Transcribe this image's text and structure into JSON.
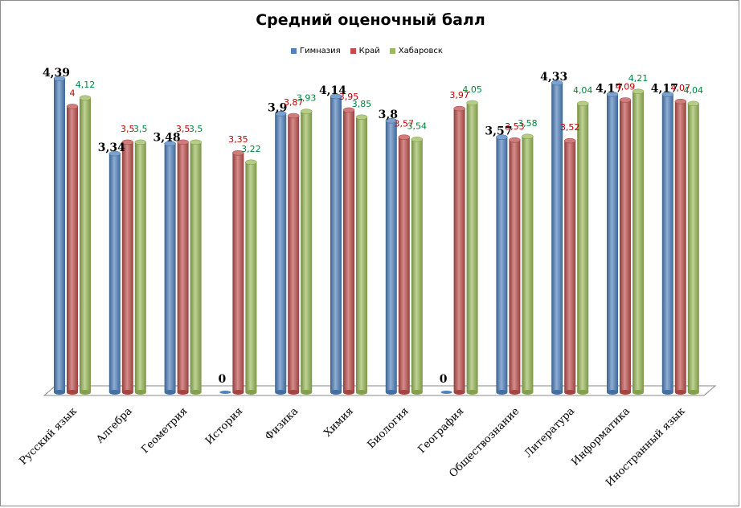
{
  "chart_data": {
    "type": "bar",
    "title": "Средний оценочный балл",
    "categories": [
      "Русский язык",
      "Алгебра",
      "Геометрия",
      "История",
      "Физика",
      "Химия",
      "Биология",
      "География",
      "Обществознание",
      "Литература",
      "Информатика",
      "Иностранный язык"
    ],
    "series": [
      {
        "name": "Гимназия",
        "color": "#4f81bd",
        "label_color": "#000000",
        "values": [
          4.39,
          3.34,
          3.48,
          0,
          3.9,
          4.14,
          3.8,
          0,
          3.57,
          4.33,
          4.17,
          4.17
        ],
        "labels": [
          "4,39",
          "3,34",
          "3,48",
          "0",
          "3,9",
          "4,14",
          "3,8",
          "0",
          "3,57",
          "4,33",
          "4,17",
          "4,17"
        ]
      },
      {
        "name": "Край",
        "color": "#c0504d",
        "label_color": "#c00000",
        "values": [
          4,
          3.5,
          3.5,
          3.35,
          3.87,
          3.95,
          3.57,
          3.97,
          3.53,
          3.52,
          4.09,
          4.07
        ],
        "labels": [
          "4",
          "3,5",
          "3,5",
          "3,35",
          "3,87",
          "3,95",
          "3,57",
          "3,97",
          "3,53",
          "3,52",
          "4,09",
          "4,07"
        ]
      },
      {
        "name": "Хабаровск",
        "color": "#9bbb59",
        "label_color": "#00863d",
        "values": [
          4.12,
          3.5,
          3.5,
          3.22,
          3.93,
          3.85,
          3.54,
          4.05,
          3.58,
          4.04,
          4.21,
          4.04
        ],
        "labels": [
          "4,12",
          "3,5",
          "3,5",
          "3,22",
          "3,93",
          "3,85",
          "3,54",
          "4,05",
          "3,58",
          "4,04",
          "4,21",
          "4,04"
        ]
      }
    ],
    "ylim": [
      0,
      4.5
    ],
    "legend": "top",
    "grid": false
  }
}
